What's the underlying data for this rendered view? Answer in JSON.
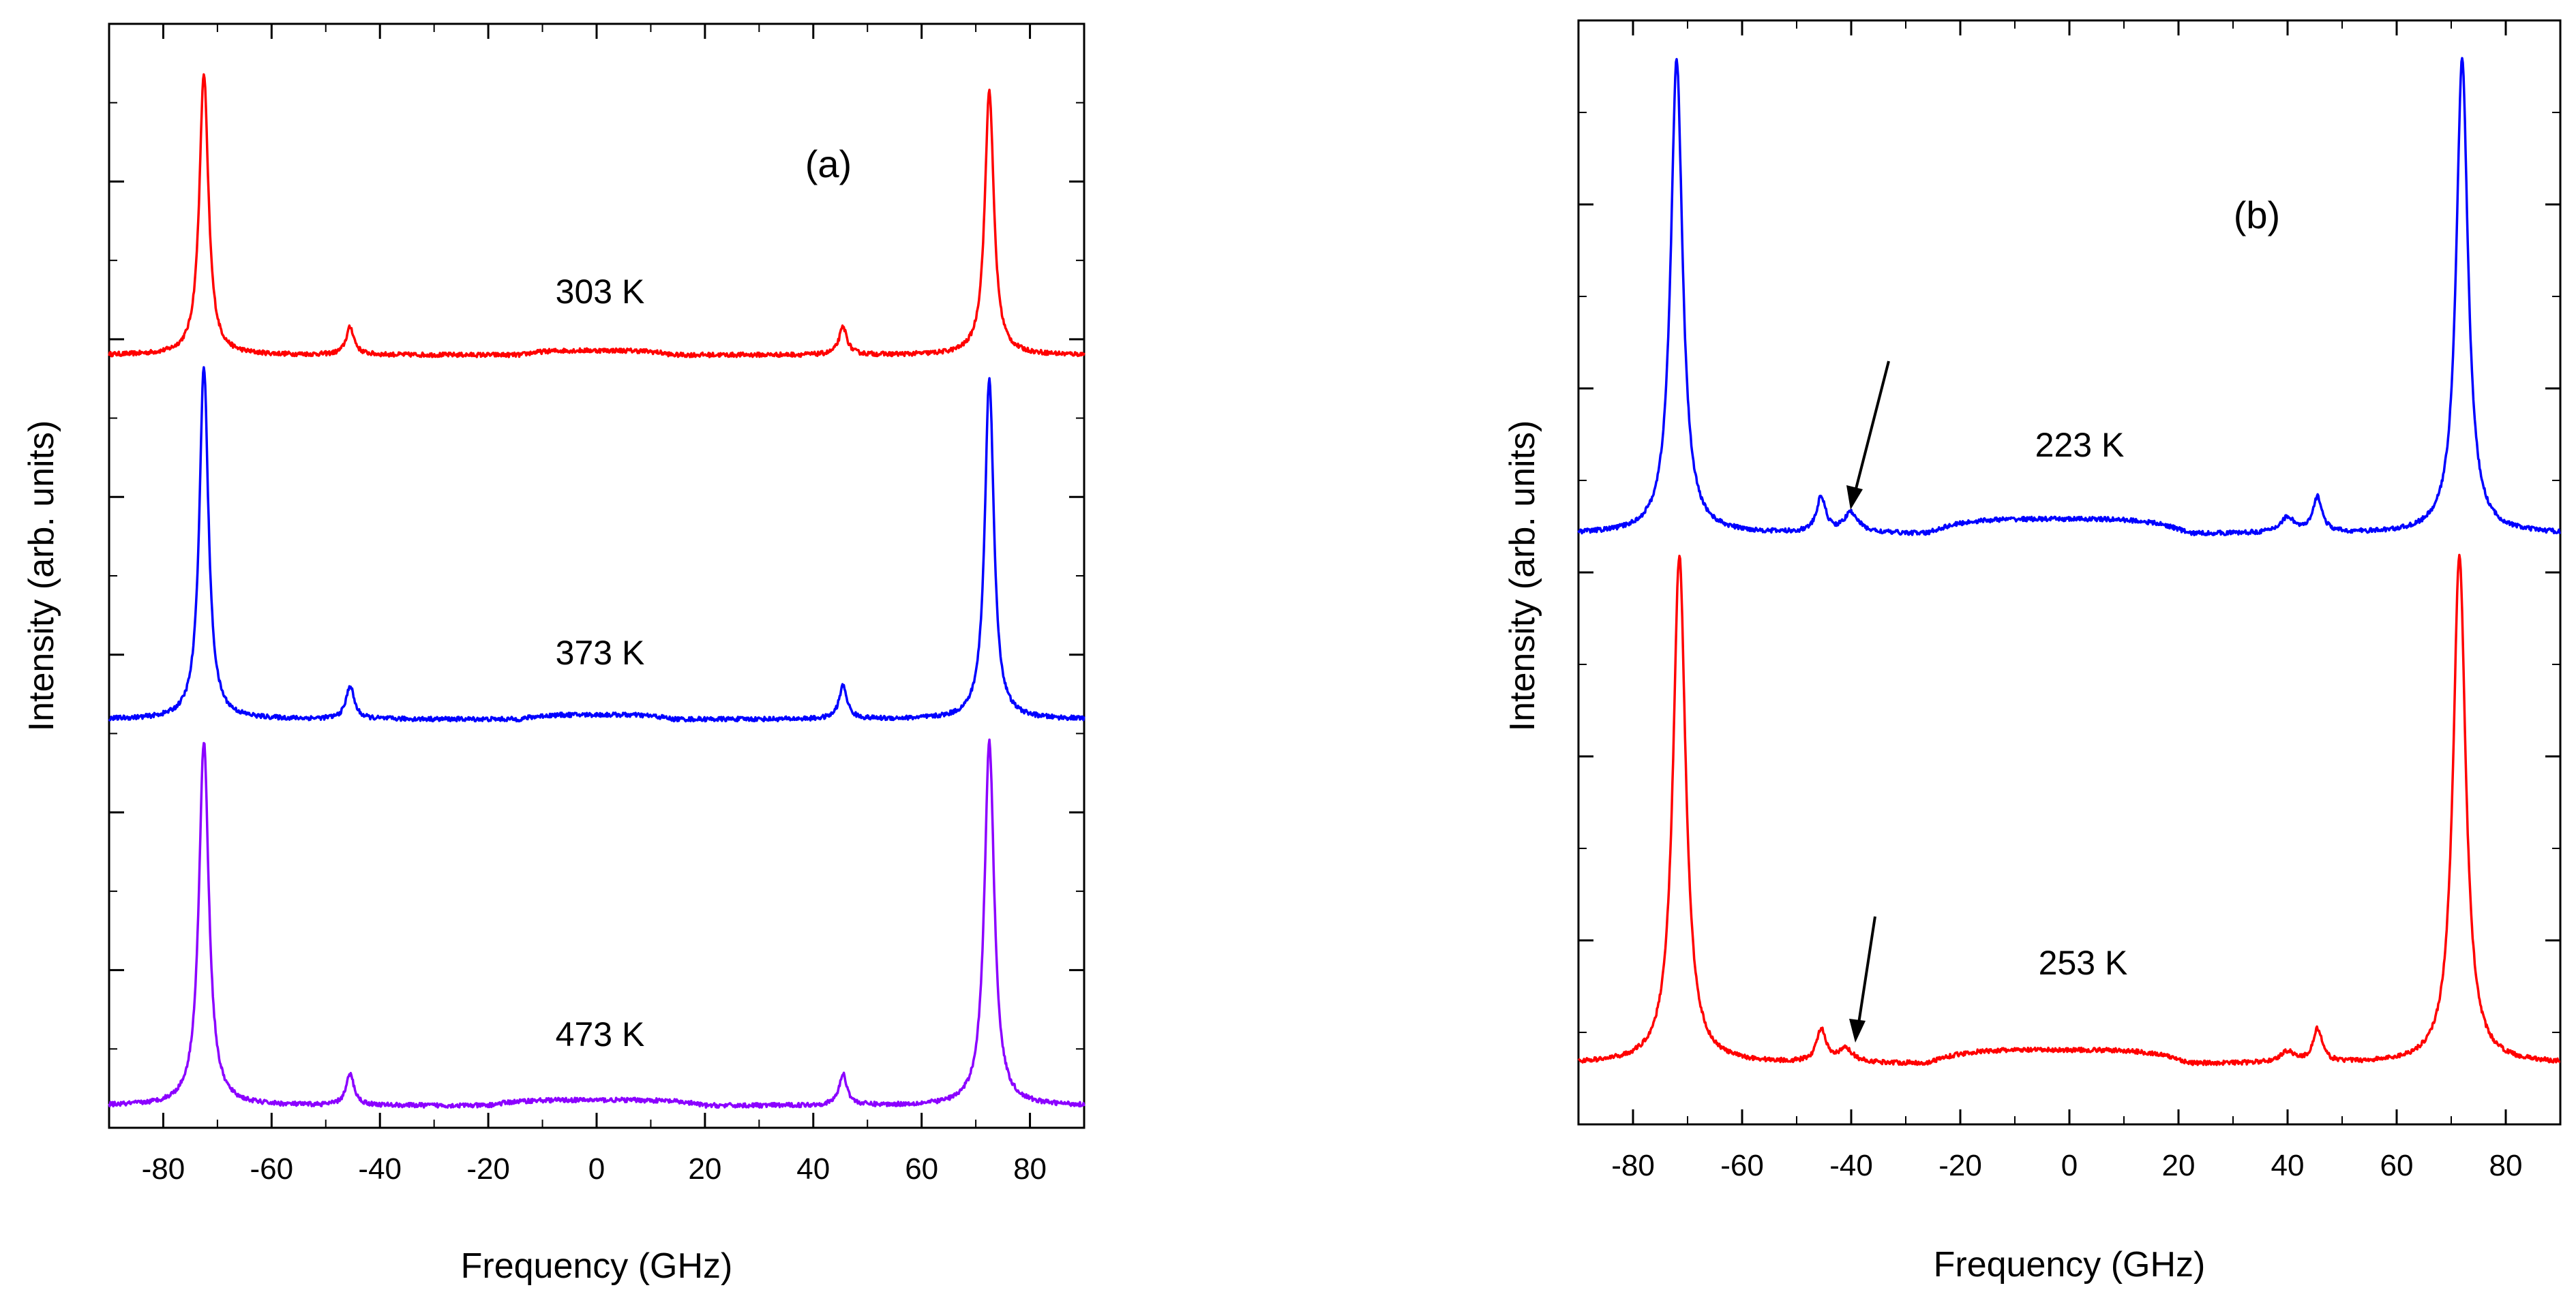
{
  "chart_data": [
    {
      "type": "line",
      "panel_label": "(a)",
      "xlabel": "Frequency (GHz)",
      "ylabel": "Intensity (arb. units)",
      "xlim": [
        -90,
        90
      ],
      "xticks": [
        -80,
        -60,
        -40,
        -20,
        0,
        20,
        40,
        60,
        80
      ],
      "ylim": [
        0,
        1
      ],
      "series": [
        {
          "name": "303 K",
          "color": "#ff0000",
          "baseline": 0.7,
          "peaks": [
            {
              "x": -72.5,
              "height": 0.255,
              "width": 1.0
            },
            {
              "x": -45.5,
              "height": 0.025,
              "width": 0.9
            },
            {
              "x": 45.5,
              "height": 0.025,
              "width": 0.9
            },
            {
              "x": 72.5,
              "height": 0.24,
              "width": 1.0
            }
          ],
          "broad": {
            "center": 0,
            "height": 0.004,
            "halfwidth": 14
          }
        },
        {
          "name": "373 K",
          "color": "#0000ff",
          "baseline": 0.37,
          "peaks": [
            {
              "x": -72.5,
              "height": 0.32,
              "width": 1.0
            },
            {
              "x": -45.5,
              "height": 0.03,
              "width": 0.9
            },
            {
              "x": 45.5,
              "height": 0.03,
              "width": 0.9
            },
            {
              "x": 72.5,
              "height": 0.31,
              "width": 1.0
            }
          ],
          "broad": {
            "center": 0,
            "height": 0.004,
            "halfwidth": 14
          }
        },
        {
          "name": "473 K",
          "color": "#8b00ff",
          "baseline": 0.02,
          "peaks": [
            {
              "x": -72.5,
              "height": 0.33,
              "width": 1.1
            },
            {
              "x": -45.5,
              "height": 0.028,
              "width": 0.9
            },
            {
              "x": 45.5,
              "height": 0.028,
              "width": 0.9
            },
            {
              "x": 72.5,
              "height": 0.33,
              "width": 1.1
            }
          ],
          "broad": {
            "center": 0,
            "height": 0.005,
            "halfwidth": 20
          }
        }
      ]
    },
    {
      "type": "line",
      "panel_label": "(b)",
      "xlabel": "Frequency (GHz)",
      "ylabel": "Intensity (arb. units)",
      "xlim": [
        -90,
        90
      ],
      "xticks": [
        -80,
        -60,
        -40,
        -20,
        0,
        20,
        40,
        60,
        80
      ],
      "ylim": [
        0,
        1
      ],
      "series": [
        {
          "name": "223 K",
          "color": "#0000ff",
          "baseline": 0.535,
          "peaks": [
            {
              "x": -72,
              "height": 0.43,
              "width": 1.3
            },
            {
              "x": -45.5,
              "height": 0.032,
              "width": 1.0
            },
            {
              "x": -40,
              "height": 0.018,
              "width": 1.6
            },
            {
              "x": 40,
              "height": 0.014,
              "width": 1.6
            },
            {
              "x": 45.5,
              "height": 0.032,
              "width": 1.0
            },
            {
              "x": 72,
              "height": 0.43,
              "width": 1.3
            }
          ],
          "broad": {
            "center": -2,
            "height": 0.013,
            "halfwidth": 24
          }
        },
        {
          "name": "253 K",
          "color": "#ff0000",
          "baseline": 0.055,
          "peaks": [
            {
              "x": -71.5,
              "height": 0.46,
              "width": 1.4
            },
            {
              "x": -45.5,
              "height": 0.03,
              "width": 1.0
            },
            {
              "x": -41,
              "height": 0.012,
              "width": 1.6
            },
            {
              "x": 40,
              "height": 0.01,
              "width": 1.6
            },
            {
              "x": 45.5,
              "height": 0.03,
              "width": 1.0
            },
            {
              "x": 71.5,
              "height": 0.46,
              "width": 1.4
            }
          ],
          "broad": {
            "center": -2,
            "height": 0.012,
            "halfwidth": 24
          }
        }
      ]
    }
  ]
}
